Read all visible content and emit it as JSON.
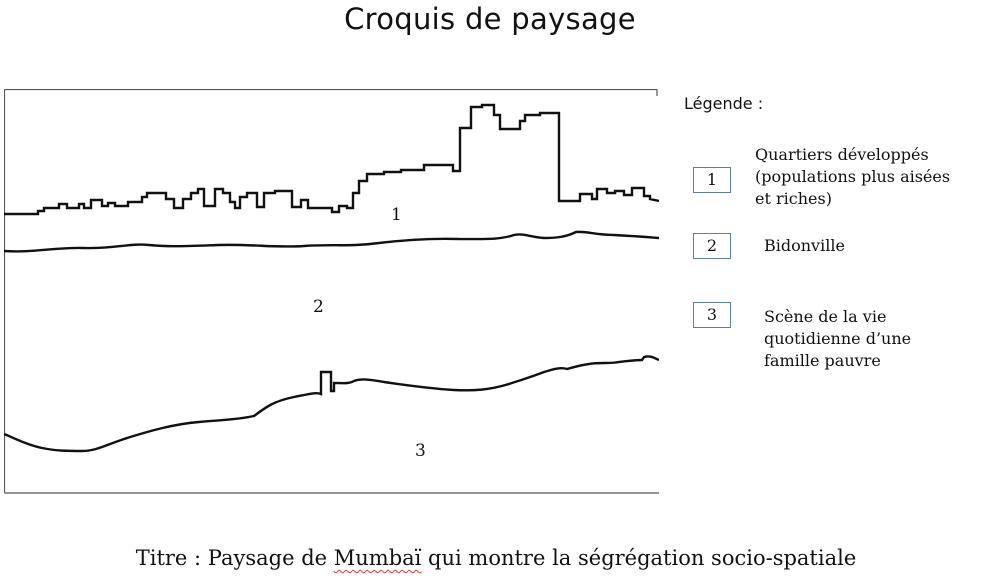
{
  "title": "Croquis de paysage",
  "legend": {
    "heading": "Légende :",
    "items": [
      {
        "number": "1",
        "text": "Quartiers développés\n(populations plus aisées\net riches)"
      },
      {
        "number": "2",
        "text": "Bidonville"
      },
      {
        "number": "3",
        "text": "Scène de la vie\nquotidienne d’une\nfamille pauvre"
      }
    ]
  },
  "sketch": {
    "zones": [
      "1",
      "2",
      "3"
    ]
  },
  "caption": {
    "before": "Titre : Paysage de ",
    "flagged_word": "Mumbaï",
    "after": " qui montre la ségrégation socio-spatiale"
  },
  "colors": {
    "ink": "#111111",
    "legend_border": "#5b7fa6",
    "spell_underline": "#d23a3a"
  }
}
